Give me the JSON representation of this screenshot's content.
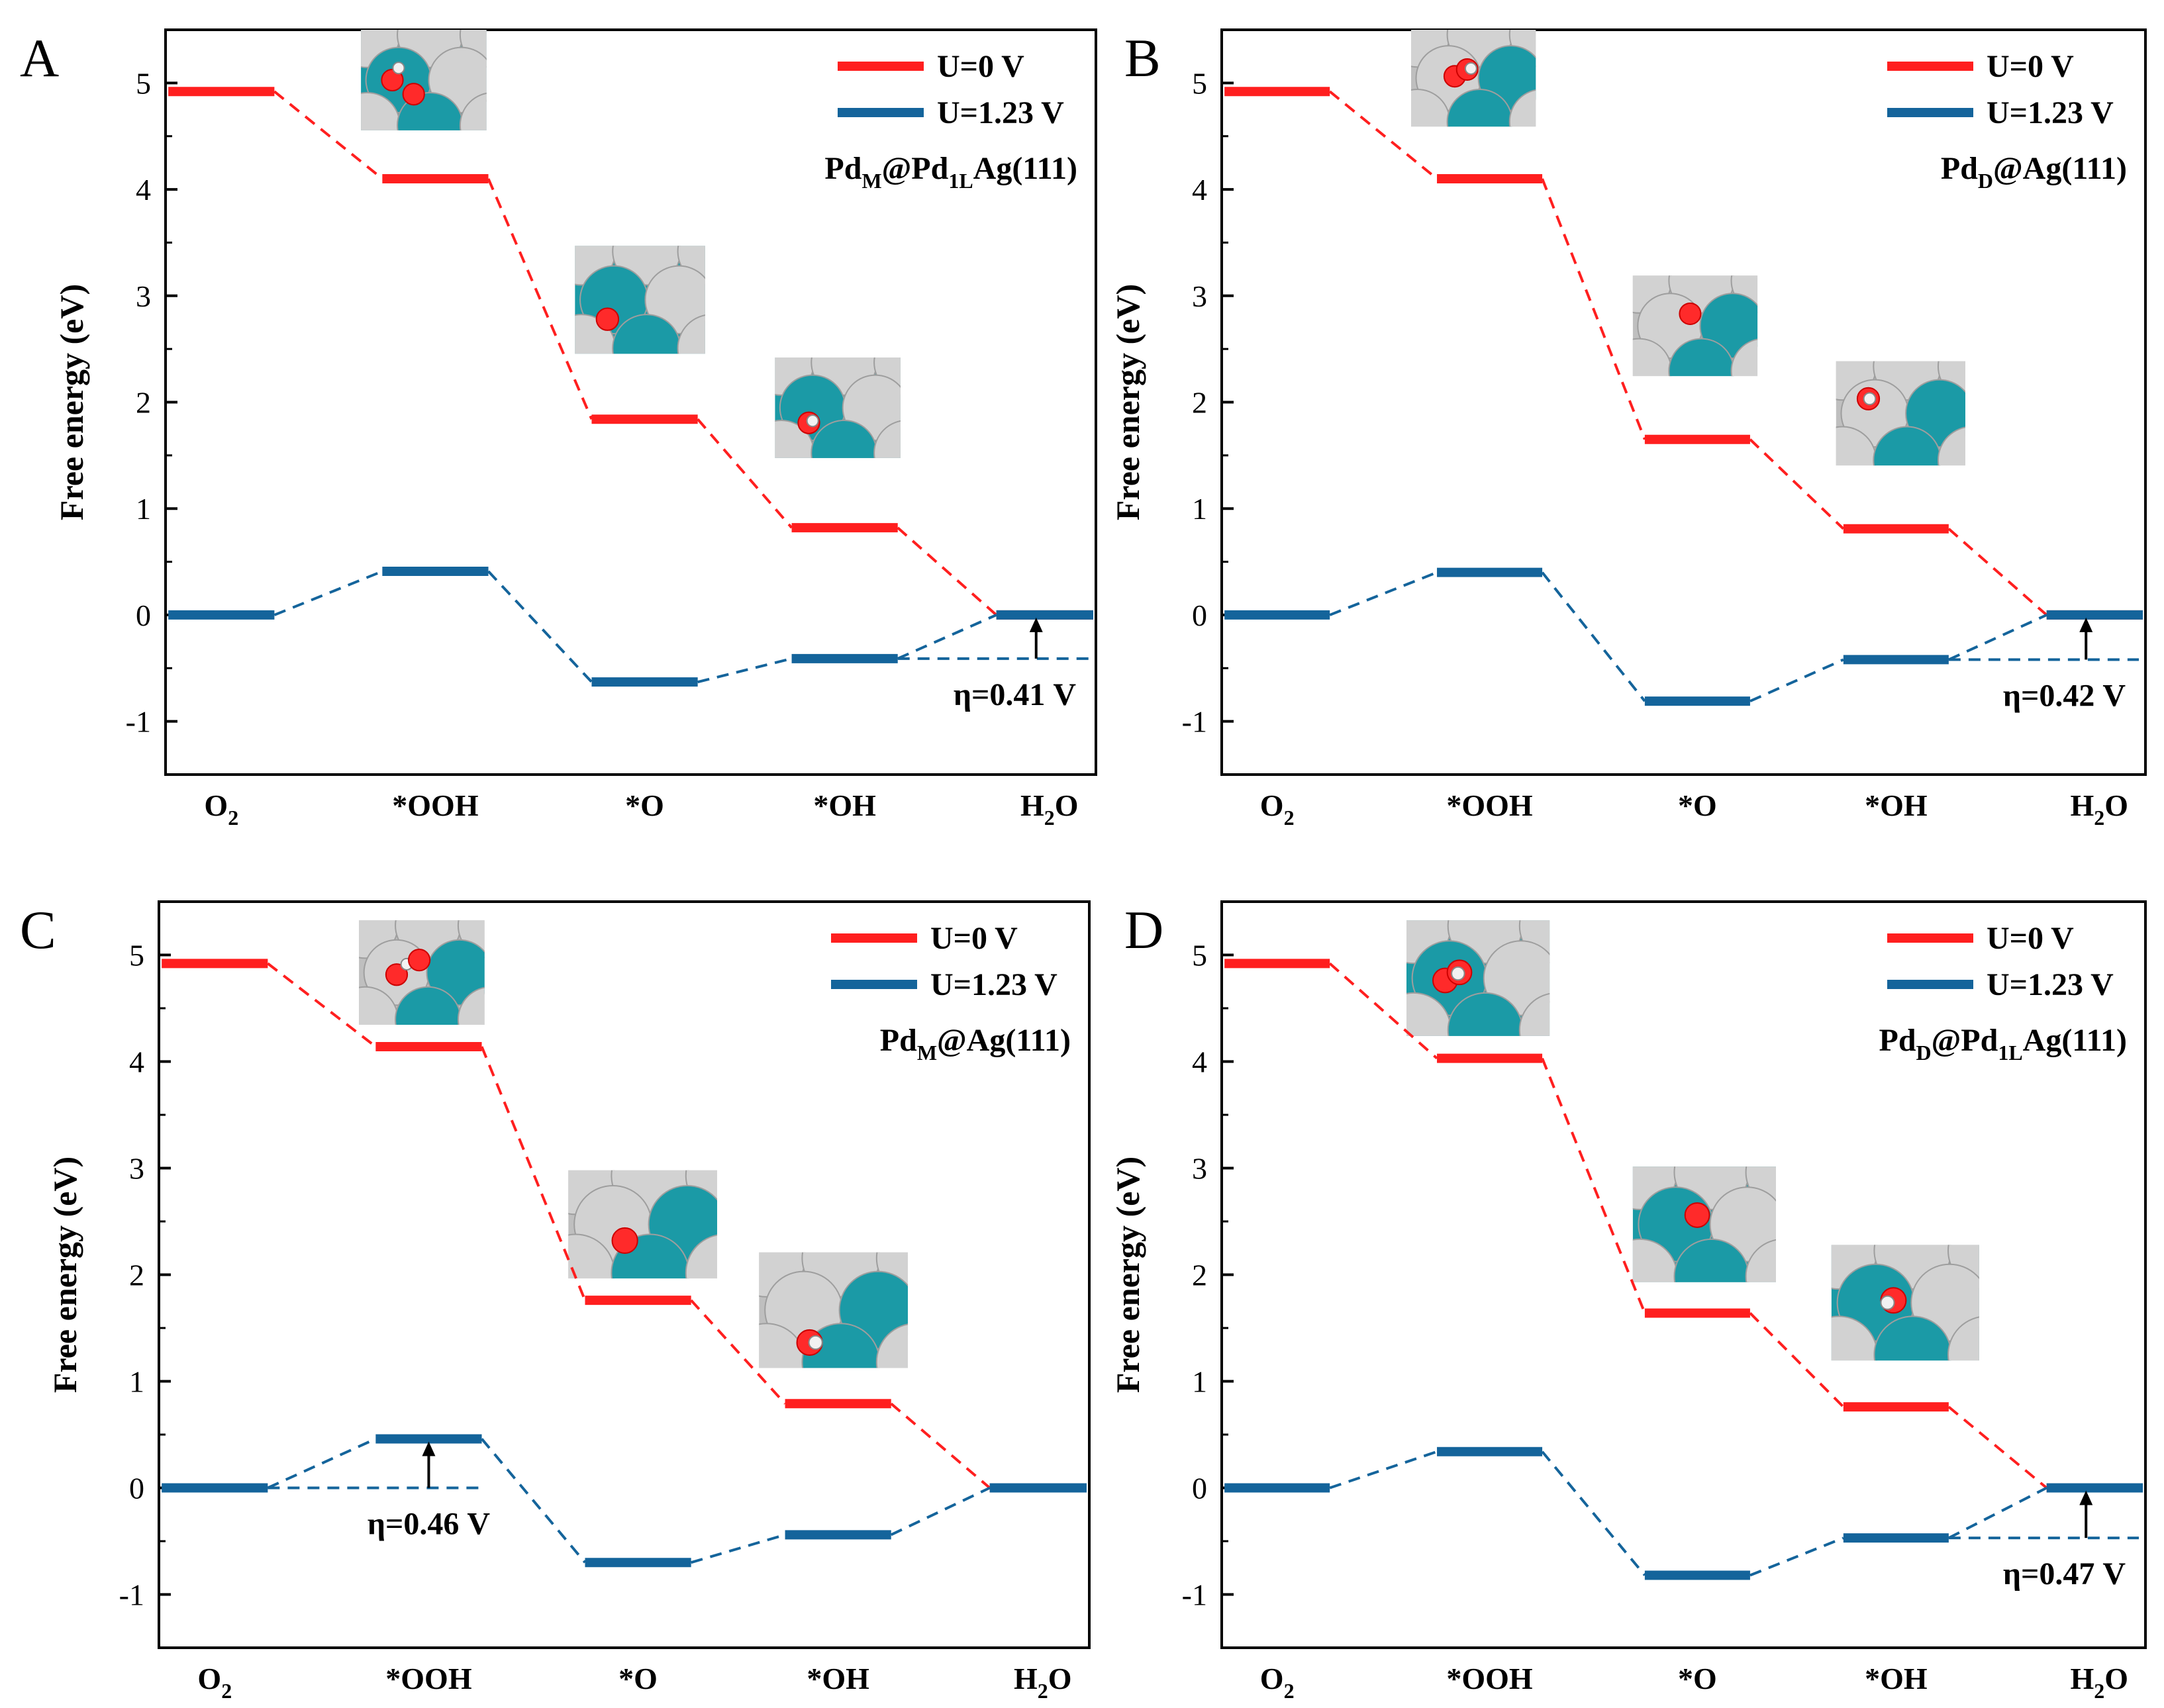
{
  "colors": {
    "u0": "#ff1f1f",
    "u123": "#14649b",
    "pd": "#1b9aa6",
    "ag": "#d2d2d2",
    "oxygen": "#ff2a2a",
    "hydrogen": "#f2f2f2",
    "axis": "#000000"
  },
  "chart_data": [
    {
      "panel": "A",
      "type": "free-energy-diagram",
      "ylabel": "Free energy (eV)",
      "ylim": [
        -1.5,
        5.5
      ],
      "yticks": [
        "-1",
        "0",
        "1",
        "2",
        "3",
        "4",
        "5"
      ],
      "steps": [
        "O2",
        "*OOH",
        "*O",
        "*OH",
        "H2O"
      ],
      "legend": [
        "U=0 V",
        "U=1.23 V"
      ],
      "system": {
        "base": "Pd",
        "sub": "M",
        "mid": "@Pd",
        "sub2": "1L",
        "rest": "Ag(111)"
      },
      "series": [
        {
          "name": "U=0 V",
          "values": [
            4.92,
            4.1,
            1.84,
            0.82,
            0.0
          ]
        },
        {
          "name": "U=1.23 V",
          "values": [
            0.0,
            0.41,
            -0.63,
            -0.41,
            0.0
          ]
        }
      ],
      "eta": {
        "label": "η=0.41 V",
        "level": -0.41,
        "x_step": 4,
        "from": -0.41,
        "to": 0.0,
        "text_below": true
      },
      "adsorbates": [
        {
          "step": "*OOH",
          "slab": "teal",
          "atoms": [
            [
              "O",
              0.25,
              0.5
            ],
            [
              "H",
              0.3,
              0.38
            ],
            [
              "O",
              0.42,
              0.64
            ]
          ]
        },
        {
          "step": "*O",
          "slab": "teal",
          "atoms": [
            [
              "O",
              0.25,
              0.68
            ]
          ]
        },
        {
          "step": "*OH",
          "slab": "teal",
          "atoms": [
            [
              "O",
              0.27,
              0.65
            ],
            [
              "H",
              0.3,
              0.63
            ]
          ]
        }
      ]
    },
    {
      "panel": "B",
      "type": "free-energy-diagram",
      "ylabel": "Free energy (eV)",
      "ylim": [
        -1.5,
        5.5
      ],
      "yticks": [
        "-1",
        "0",
        "1",
        "2",
        "3",
        "4",
        "5"
      ],
      "steps": [
        "O2",
        "*OOH",
        "*O",
        "*OH",
        "H2O"
      ],
      "legend": [
        "U=0 V",
        "U=1.23 V"
      ],
      "system": {
        "base": "Pd",
        "sub": "D",
        "mid": "@Ag(111)",
        "sub2": "",
        "rest": ""
      },
      "series": [
        {
          "name": "U=0 V",
          "values": [
            4.92,
            4.1,
            1.65,
            0.81,
            0.0
          ]
        },
        {
          "name": "U=1.23 V",
          "values": [
            0.0,
            0.4,
            -0.81,
            -0.42,
            0.0
          ]
        }
      ],
      "eta": {
        "label": "η=0.42 V",
        "level": -0.42,
        "x_step": 4,
        "from": -0.42,
        "to": 0.0,
        "text_below": true
      },
      "adsorbates": [
        {
          "step": "*OOH",
          "slab": "grey",
          "atoms": [
            [
              "O",
              0.35,
              0.48
            ],
            [
              "O",
              0.45,
              0.41
            ],
            [
              "H",
              0.48,
              0.4
            ]
          ]
        },
        {
          "step": "*O",
          "slab": "grey",
          "atoms": [
            [
              "O",
              0.46,
              0.38
            ]
          ]
        },
        {
          "step": "*OH",
          "slab": "grey",
          "atoms": [
            [
              "O",
              0.25,
              0.36
            ],
            [
              "H",
              0.26,
              0.36
            ]
          ]
        }
      ]
    },
    {
      "panel": "C",
      "type": "free-energy-diagram",
      "ylabel": "Free energy (eV)",
      "ylim": [
        -1.5,
        5.5
      ],
      "yticks": [
        "-1",
        "0",
        "1",
        "2",
        "3",
        "4",
        "5"
      ],
      "steps": [
        "O2",
        "*OOH",
        "*O",
        "*OH",
        "H2O"
      ],
      "legend": [
        "U=0 V",
        "U=1.23 V"
      ],
      "system": {
        "base": "Pd",
        "sub": "M",
        "mid": "@Ag(111)",
        "sub2": "",
        "rest": ""
      },
      "series": [
        {
          "name": "U=0 V",
          "values": [
            4.92,
            4.14,
            1.76,
            0.79,
            0.0
          ]
        },
        {
          "name": "U=1.23 V",
          "values": [
            0.0,
            0.46,
            -0.7,
            -0.44,
            0.0
          ]
        }
      ],
      "eta": {
        "label": "η=0.46 V",
        "level": 0.0,
        "x_step": 1,
        "from": 0.0,
        "to": 0.46,
        "text_below": true
      },
      "adsorbates": [
        {
          "step": "*OOH",
          "slab": "grey",
          "atoms": [
            [
              "O",
              0.3,
              0.52
            ],
            [
              "H",
              0.38,
              0.42
            ],
            [
              "O",
              0.48,
              0.38
            ]
          ]
        },
        {
          "step": "*O",
          "slab": "grey",
          "atoms": [
            [
              "O",
              0.38,
              0.65
            ]
          ]
        },
        {
          "step": "*OH",
          "slab": "grey",
          "atoms": [
            [
              "O",
              0.34,
              0.78
            ],
            [
              "H",
              0.38,
              0.78
            ]
          ]
        }
      ]
    },
    {
      "panel": "D",
      "type": "free-energy-diagram",
      "ylabel": "Free energy (eV)",
      "ylim": [
        -1.5,
        5.5
      ],
      "yticks": [
        "-1",
        "0",
        "1",
        "2",
        "3",
        "4",
        "5"
      ],
      "steps": [
        "O2",
        "*OOH",
        "*O",
        "*OH",
        "H2O"
      ],
      "legend": [
        "U=0 V",
        "U=1.23 V"
      ],
      "system": {
        "base": "Pd",
        "sub": "D",
        "mid": "@Pd",
        "sub2": "1L",
        "rest": "Ag(111)"
      },
      "series": [
        {
          "name": "U=0 V",
          "values": [
            4.92,
            4.03,
            1.64,
            0.76,
            0.0
          ]
        },
        {
          "name": "U=1.23 V",
          "values": [
            0.0,
            0.34,
            -0.82,
            -0.47,
            0.0
          ]
        }
      ],
      "eta": {
        "label": "η=0.47 V",
        "level": -0.47,
        "x_step": 4,
        "from": -0.47,
        "to": 0.0,
        "text_below": true
      },
      "adsorbates": [
        {
          "step": "*OOH",
          "slab": "teal",
          "atoms": [
            [
              "O",
              0.27,
              0.52
            ],
            [
              "O",
              0.37,
              0.45
            ],
            [
              "H",
              0.36,
              0.46
            ]
          ]
        },
        {
          "step": "*O",
          "slab": "teal",
          "atoms": [
            [
              "O",
              0.45,
              0.42
            ]
          ]
        },
        {
          "step": "*OH",
          "slab": "teal",
          "atoms": [
            [
              "O",
              0.42,
              0.48
            ],
            [
              "H",
              0.38,
              0.5
            ]
          ]
        }
      ]
    }
  ]
}
